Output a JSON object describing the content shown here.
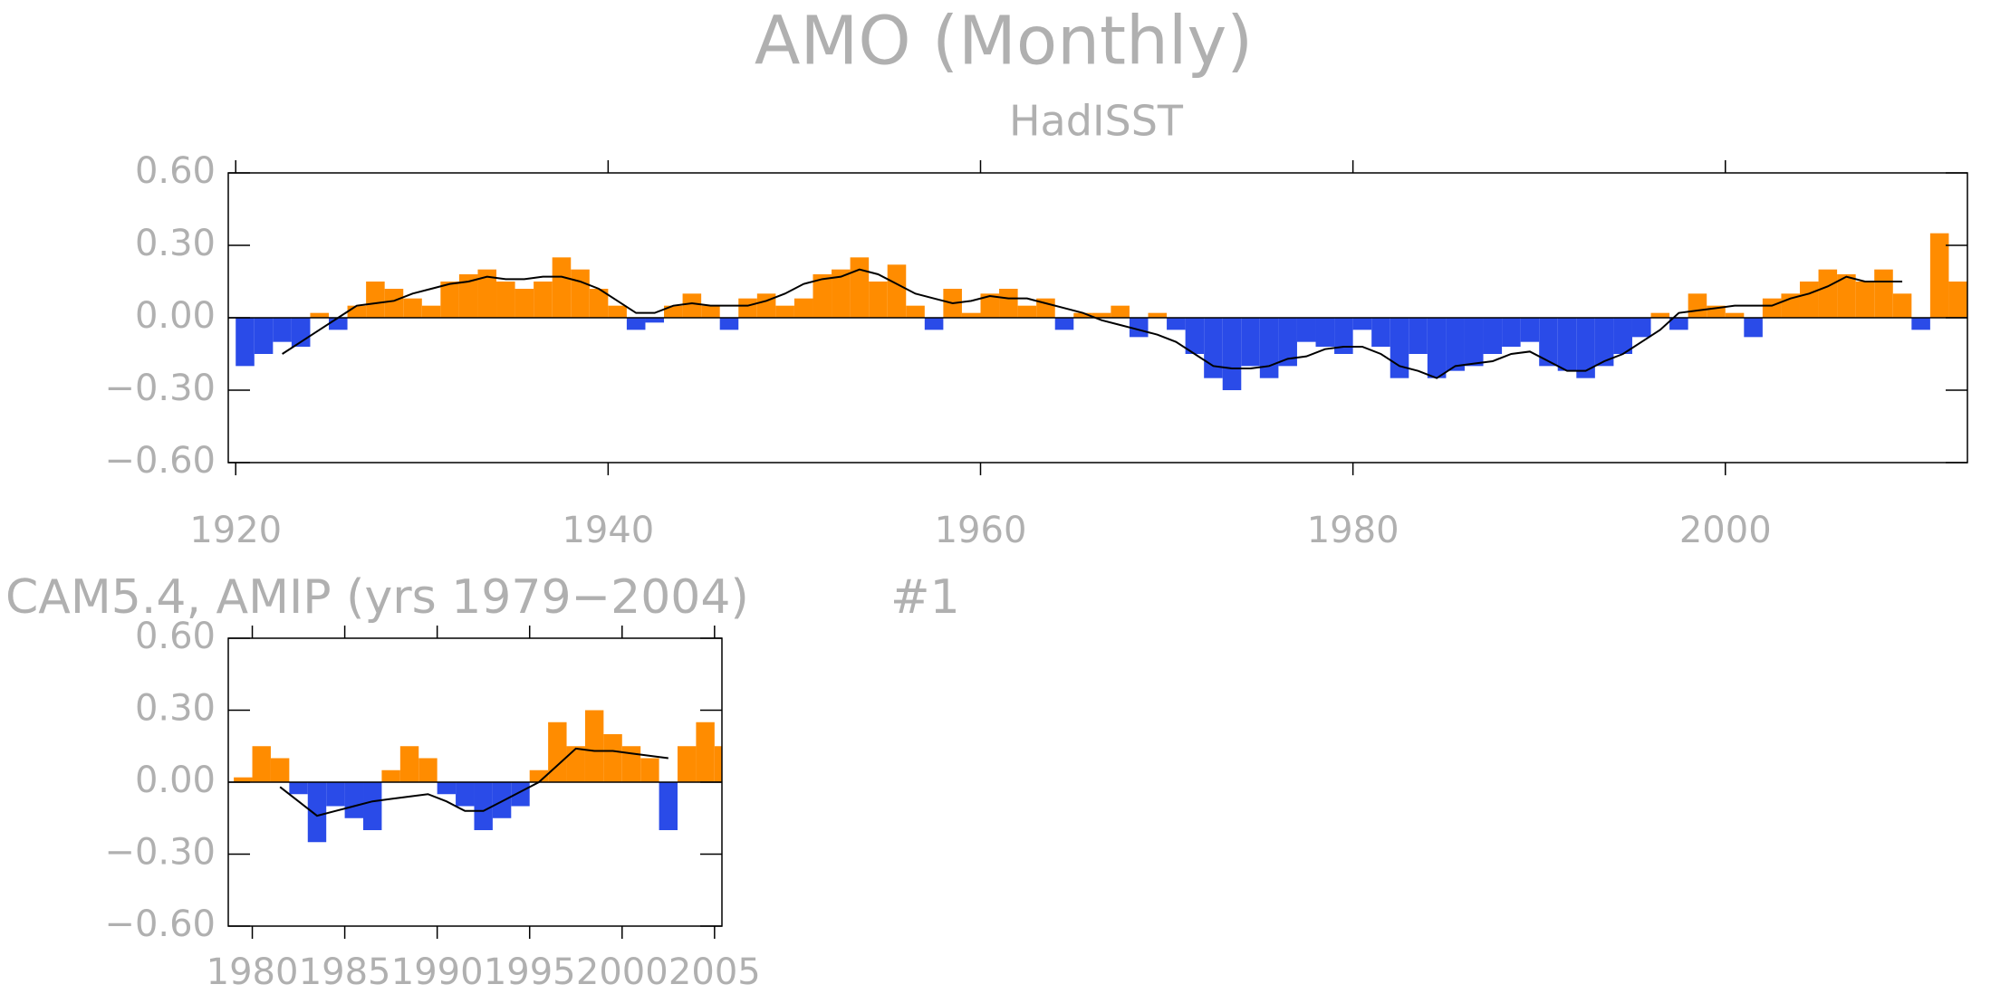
{
  "chart_data": [
    {
      "type": "area",
      "title": "AMO (Monthly)",
      "subtitle": "HadISST",
      "x": [
        1920,
        1921,
        1922,
        1923,
        1924,
        1925,
        1926,
        1927,
        1928,
        1929,
        1930,
        1931,
        1932,
        1933,
        1934,
        1935,
        1936,
        1937,
        1938,
        1939,
        1940,
        1941,
        1942,
        1943,
        1944,
        1945,
        1946,
        1947,
        1948,
        1949,
        1950,
        1951,
        1952,
        1953,
        1954,
        1955,
        1956,
        1957,
        1958,
        1959,
        1960,
        1961,
        1962,
        1963,
        1964,
        1965,
        1966,
        1967,
        1968,
        1969,
        1970,
        1971,
        1972,
        1973,
        1974,
        1975,
        1976,
        1977,
        1978,
        1979,
        1980,
        1981,
        1982,
        1983,
        1984,
        1985,
        1986,
        1987,
        1988,
        1989,
        1990,
        1991,
        1992,
        1993,
        1994,
        1995,
        1996,
        1997,
        1998,
        1999,
        2000,
        2001,
        2002,
        2003,
        2004,
        2005,
        2006,
        2007,
        2008,
        2009,
        2010,
        2011,
        2012
      ],
      "series": [
        {
          "color_positive": "#ff8c00",
          "color_negative": "#2a4be8",
          "values": [
            -0.2,
            -0.15,
            -0.1,
            -0.12,
            0.02,
            -0.05,
            0.05,
            0.15,
            0.12,
            0.08,
            0.05,
            0.15,
            0.18,
            0.2,
            0.15,
            0.12,
            0.15,
            0.25,
            0.2,
            0.12,
            0.05,
            -0.05,
            -0.02,
            0.05,
            0.1,
            0.05,
            -0.05,
            0.08,
            0.1,
            0.05,
            0.08,
            0.18,
            0.2,
            0.25,
            0.15,
            0.22,
            0.05,
            -0.05,
            0.12,
            0.02,
            0.1,
            0.12,
            0.05,
            0.08,
            -0.05,
            0.02,
            0.02,
            0.05,
            -0.08,
            0.02,
            -0.05,
            -0.15,
            -0.25,
            -0.3,
            -0.2,
            -0.25,
            -0.2,
            -0.1,
            -0.12,
            -0.15,
            -0.05,
            -0.12,
            -0.25,
            -0.15,
            -0.25,
            -0.22,
            -0.2,
            -0.15,
            -0.12,
            -0.1,
            -0.2,
            -0.22,
            -0.25,
            -0.2,
            -0.15,
            -0.08,
            0.02,
            -0.05,
            0.1,
            0.05,
            0.02,
            -0.08,
            0.08,
            0.1,
            0.15,
            0.2,
            0.18,
            0.15,
            0.2,
            0.1,
            -0.05,
            0.35,
            0.15
          ]
        },
        {
          "color": "#000000",
          "values": [
            null,
            null,
            -0.15,
            -0.1,
            -0.05,
            0.0,
            0.05,
            0.06,
            0.07,
            0.1,
            0.12,
            0.14,
            0.15,
            0.17,
            0.16,
            0.16,
            0.17,
            0.17,
            0.15,
            0.12,
            0.07,
            0.02,
            0.02,
            0.05,
            0.06,
            0.05,
            0.05,
            0.05,
            0.07,
            0.1,
            0.14,
            0.16,
            0.17,
            0.2,
            0.18,
            0.14,
            0.1,
            0.08,
            0.06,
            0.07,
            0.09,
            0.08,
            0.08,
            0.06,
            0.04,
            0.02,
            -0.01,
            -0.03,
            -0.05,
            -0.07,
            -0.1,
            -0.15,
            -0.2,
            -0.21,
            -0.21,
            -0.2,
            -0.17,
            -0.16,
            -0.13,
            -0.12,
            -0.12,
            -0.15,
            -0.2,
            -0.22,
            -0.25,
            -0.2,
            -0.19,
            -0.18,
            -0.15,
            -0.14,
            -0.18,
            -0.22,
            -0.22,
            -0.18,
            -0.15,
            -0.1,
            -0.05,
            0.02,
            0.03,
            0.04,
            0.05,
            0.05,
            0.05,
            0.08,
            0.1,
            0.13,
            0.17,
            0.15,
            0.15,
            0.15,
            null,
            null,
            null
          ]
        }
      ],
      "xlim": [
        1919.6,
        2013
      ],
      "xticks": [
        1920,
        1940,
        1960,
        1980,
        2000
      ],
      "ylim": [
        -0.6,
        0.6
      ],
      "yticks": [
        {
          "value": 0.6,
          "label": "0.60"
        },
        {
          "value": 0.3,
          "label": "0.30"
        },
        {
          "value": 0,
          "label": "0.00"
        },
        {
          "value": -0.3,
          "label": "−0.30"
        },
        {
          "value": -0.6,
          "label": "−0.60"
        }
      ]
    },
    {
      "type": "area",
      "title": "CAM5.4, AMIP (yrs 1979−2004)",
      "annotation": "#1",
      "x": [
        1979,
        1980,
        1981,
        1982,
        1983,
        1984,
        1985,
        1986,
        1987,
        1988,
        1989,
        1990,
        1991,
        1992,
        1993,
        1994,
        1995,
        1996,
        1997,
        1998,
        1999,
        2000,
        2001,
        2002,
        2003,
        2004,
        2005
      ],
      "series": [
        {
          "color_positive": "#ff8c00",
          "color_negative": "#2a4be8",
          "values": [
            0.02,
            0.15,
            0.1,
            -0.05,
            -0.25,
            -0.1,
            -0.15,
            -0.2,
            0.05,
            0.15,
            0.1,
            -0.05,
            -0.1,
            -0.2,
            -0.15,
            -0.1,
            0.05,
            0.25,
            0.15,
            0.3,
            0.2,
            0.15,
            0.1,
            -0.2,
            0.15,
            0.25,
            0.15
          ]
        },
        {
          "color": "#000000",
          "values": [
            null,
            null,
            -0.02,
            -0.08,
            -0.14,
            -0.12,
            -0.1,
            -0.08,
            -0.07,
            -0.06,
            -0.05,
            -0.08,
            -0.12,
            -0.12,
            -0.08,
            -0.04,
            0.0,
            0.07,
            0.14,
            0.13,
            0.13,
            0.12,
            0.11,
            0.1,
            null,
            null,
            null
          ]
        }
      ],
      "xlim": [
        1978.7,
        2005.4
      ],
      "xticks": [
        1980,
        1985,
        1990,
        1995,
        2000,
        2005
      ],
      "ylim": [
        -0.6,
        0.6
      ],
      "yticks": [
        {
          "value": 0.6,
          "label": "0.60"
        },
        {
          "value": 0.3,
          "label": "0.30"
        },
        {
          "value": 0,
          "label": "0.00"
        },
        {
          "value": -0.3,
          "label": "−0.30"
        },
        {
          "value": -0.6,
          "label": "−0.60"
        }
      ]
    }
  ]
}
